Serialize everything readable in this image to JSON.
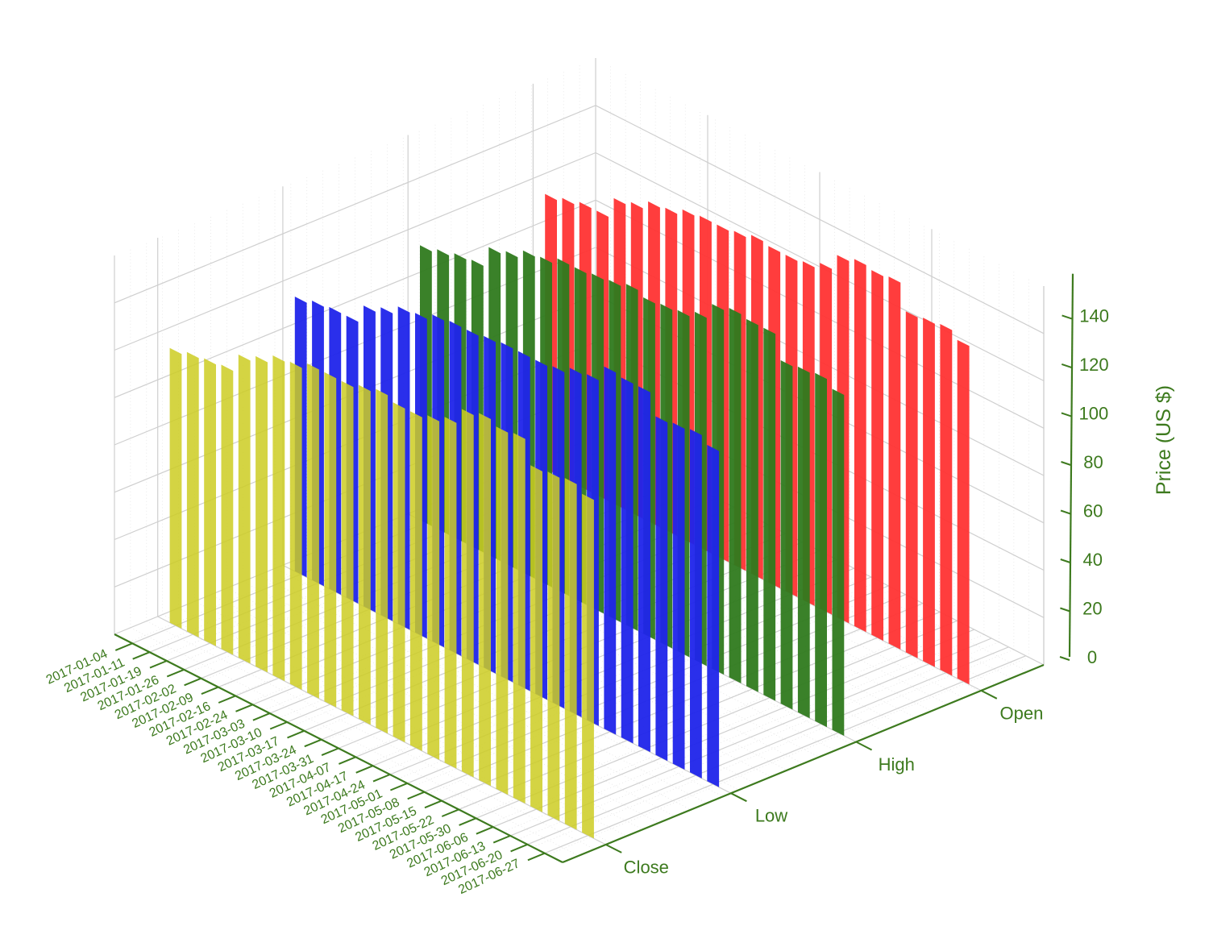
{
  "chart_data": {
    "type": "bar",
    "dates": [
      "2017-01-04",
      "2017-01-11",
      "2017-01-19",
      "2017-01-26",
      "2017-02-02",
      "2017-02-09",
      "2017-02-16",
      "2017-02-24",
      "2017-03-03",
      "2017-03-10",
      "2017-03-17",
      "2017-03-24",
      "2017-03-31",
      "2017-04-07",
      "2017-04-17",
      "2017-04-24",
      "2017-05-01",
      "2017-05-08",
      "2017-05-15",
      "2017-05-22",
      "2017-05-30",
      "2017-06-06",
      "2017-06-13",
      "2017-06-20",
      "2017-06-27"
    ],
    "series": [
      {
        "name": "Close",
        "color": "#cccc22",
        "values": [
          116,
          118,
          119,
          120,
          128,
          131,
          135,
          136,
          139,
          139,
          139,
          141,
          143,
          141,
          141,
          143,
          146,
          153,
          155,
          153,
          154,
          144,
          145,
          146,
          143
        ]
      },
      {
        "name": "Low",
        "color": "#1f24ea",
        "values": [
          116,
          118,
          119,
          119,
          127,
          130,
          134,
          135,
          138,
          139,
          139,
          140,
          141,
          141,
          141,
          142,
          145,
          146,
          153,
          152,
          152,
          143,
          144,
          145,
          142
        ]
      },
      {
        "name": "High",
        "color": "#2f7a1e",
        "values": [
          116,
          118,
          120,
          121,
          130,
          132,
          136,
          137,
          140,
          140,
          141,
          142,
          144,
          142,
          143,
          144,
          147,
          154,
          156,
          155,
          155,
          145,
          146,
          147,
          144
        ]
      },
      {
        "name": "Open",
        "color": "#ff3333",
        "values": [
          116,
          118,
          120,
          120,
          129,
          131,
          135,
          136,
          139,
          140,
          140,
          141,
          143,
          142,
          142,
          143,
          146,
          153,
          155,
          154,
          155,
          144,
          145,
          146,
          143
        ]
      }
    ],
    "zlabel": "Price (US $)",
    "zticks": [
      0,
      20,
      40,
      60,
      80,
      100,
      120,
      140
    ],
    "zlim": [
      0,
      160
    ]
  }
}
